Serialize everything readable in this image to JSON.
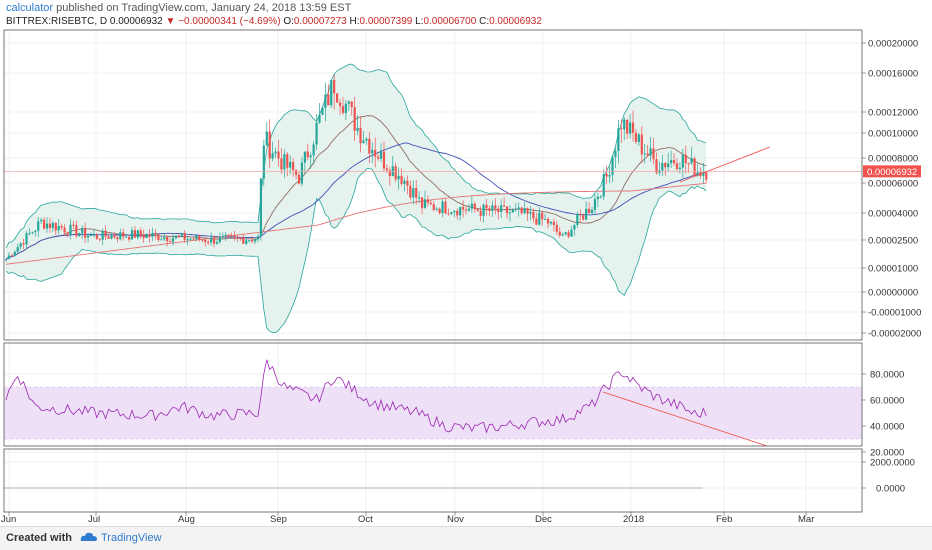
{
  "header": {
    "user": "calculator",
    "published_text": "published on TradingView.com, January 24, 2018 13:59 EST",
    "symbol": "BITTREX:RISEBTC, D",
    "last": "0.00006932",
    "change": "−0.00000341 (−4.69%)",
    "o_label": "O:",
    "o_value": "0.00007273",
    "h_label": "H:",
    "h_value": "0.00007399",
    "l_label": "L:",
    "l_value": "0.00006700",
    "c_label": "C:",
    "c_value": "0.00006932"
  },
  "footer": {
    "created_with": "Created with",
    "brand": "TradingView"
  },
  "colors": {
    "up": "#26a69a",
    "down": "#ef5350",
    "bb": "#26a69a",
    "bb_fill": "#e6f2ee",
    "ma_short": "#8d6e63",
    "ma_mid": "#3f51b5",
    "ma_long": "#e57373",
    "rsi_line": "#9c27b0",
    "rsi_band": "#ede0f7",
    "trend": "#ef5350",
    "price_tag": "#ef5350"
  },
  "chart_data": {
    "type": "candlestick",
    "price_axis": {
      "labels": [
        "0.00020000",
        "0.00016000",
        "0.00012000",
        "0.00010000",
        "0.00008000",
        "0.00006000",
        "0.00004000",
        "0.00002500",
        "0.00001000",
        "0.00000000",
        "-0.00001000",
        "-0.00002000"
      ],
      "current_price": "0.00006932"
    },
    "time_axis": {
      "labels": [
        "Jun",
        "Jul",
        "Aug",
        "Sep",
        "Oct",
        "Nov",
        "Dec",
        "2018",
        "Feb",
        "Mar"
      ]
    },
    "price_series_key_points": [
      {
        "date": "Jun",
        "close": 1.48e-05
      },
      {
        "date": "Jul",
        "close": 2.65e-05
      },
      {
        "date": "Aug",
        "close": 2.55e-05
      },
      {
        "date": "Sep",
        "close": 9.5e-05
      },
      {
        "date": "Sep 20",
        "close": 0.00015
      },
      {
        "date": "Oct",
        "close": 7e-05
      },
      {
        "date": "Nov",
        "close": 4.3e-05
      },
      {
        "date": "Dec",
        "close": 3.5e-05
      },
      {
        "date": "Dec 20",
        "close": 0.00011
      },
      {
        "date": "Jan 24",
        "close": 6.932e-05
      }
    ],
    "rsi": {
      "axis_labels": [
        "80.0000",
        "60.0000",
        "40.0000",
        "20.0000"
      ],
      "band": [
        30,
        70
      ],
      "key_points": [
        {
          "date": "Jun",
          "value": 62
        },
        {
          "date": "Jul",
          "value": 50
        },
        {
          "date": "Aug",
          "value": 48
        },
        {
          "date": "Sep",
          "value": 90
        },
        {
          "date": "Oct",
          "value": 52
        },
        {
          "date": "Nov",
          "value": 40
        },
        {
          "date": "Dec",
          "value": 45
        },
        {
          "date": "Dec 20",
          "value": 82
        },
        {
          "date": "Jan 24",
          "value": 48
        }
      ]
    },
    "volume_panel": {
      "axis_labels": [
        "2000.0000",
        "0.0000"
      ]
    }
  }
}
